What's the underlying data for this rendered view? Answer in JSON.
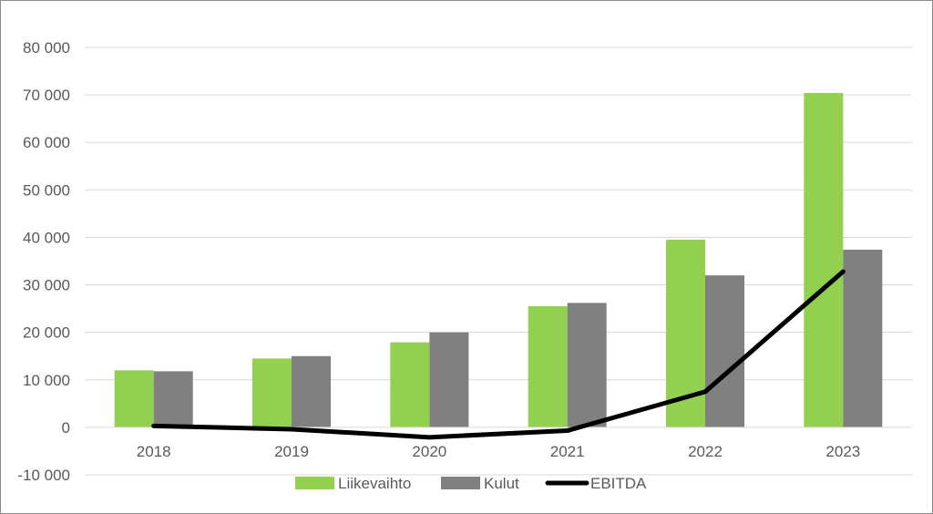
{
  "chart_data": {
    "type": "bar",
    "categories": [
      "2018",
      "2019",
      "2020",
      "2021",
      "2022",
      "2023"
    ],
    "series": [
      {
        "name": "Liikevaihto",
        "kind": "bar",
        "color": "#92d050",
        "values": [
          12000,
          14500,
          17900,
          25500,
          39500,
          70400
        ]
      },
      {
        "name": "Kulut",
        "kind": "bar",
        "color": "#808080",
        "values": [
          11800,
          15000,
          20000,
          26200,
          32000,
          37400
        ]
      },
      {
        "name": "EBITDA",
        "kind": "line",
        "color": "#000000",
        "values": [
          300,
          -400,
          -2100,
          -700,
          7500,
          32800
        ]
      }
    ],
    "ylim": [
      -10000,
      80000
    ],
    "yticks": [
      -10000,
      0,
      10000,
      20000,
      30000,
      40000,
      50000,
      60000,
      70000,
      80000
    ],
    "ytick_labels": [
      "-10 000",
      "0",
      "10 000",
      "20 000",
      "30 000",
      "40 000",
      "50 000",
      "60 000",
      "70 000",
      "80 000"
    ],
    "grid": true,
    "legend": "bottom",
    "title": "",
    "xlabel": "",
    "ylabel": ""
  }
}
